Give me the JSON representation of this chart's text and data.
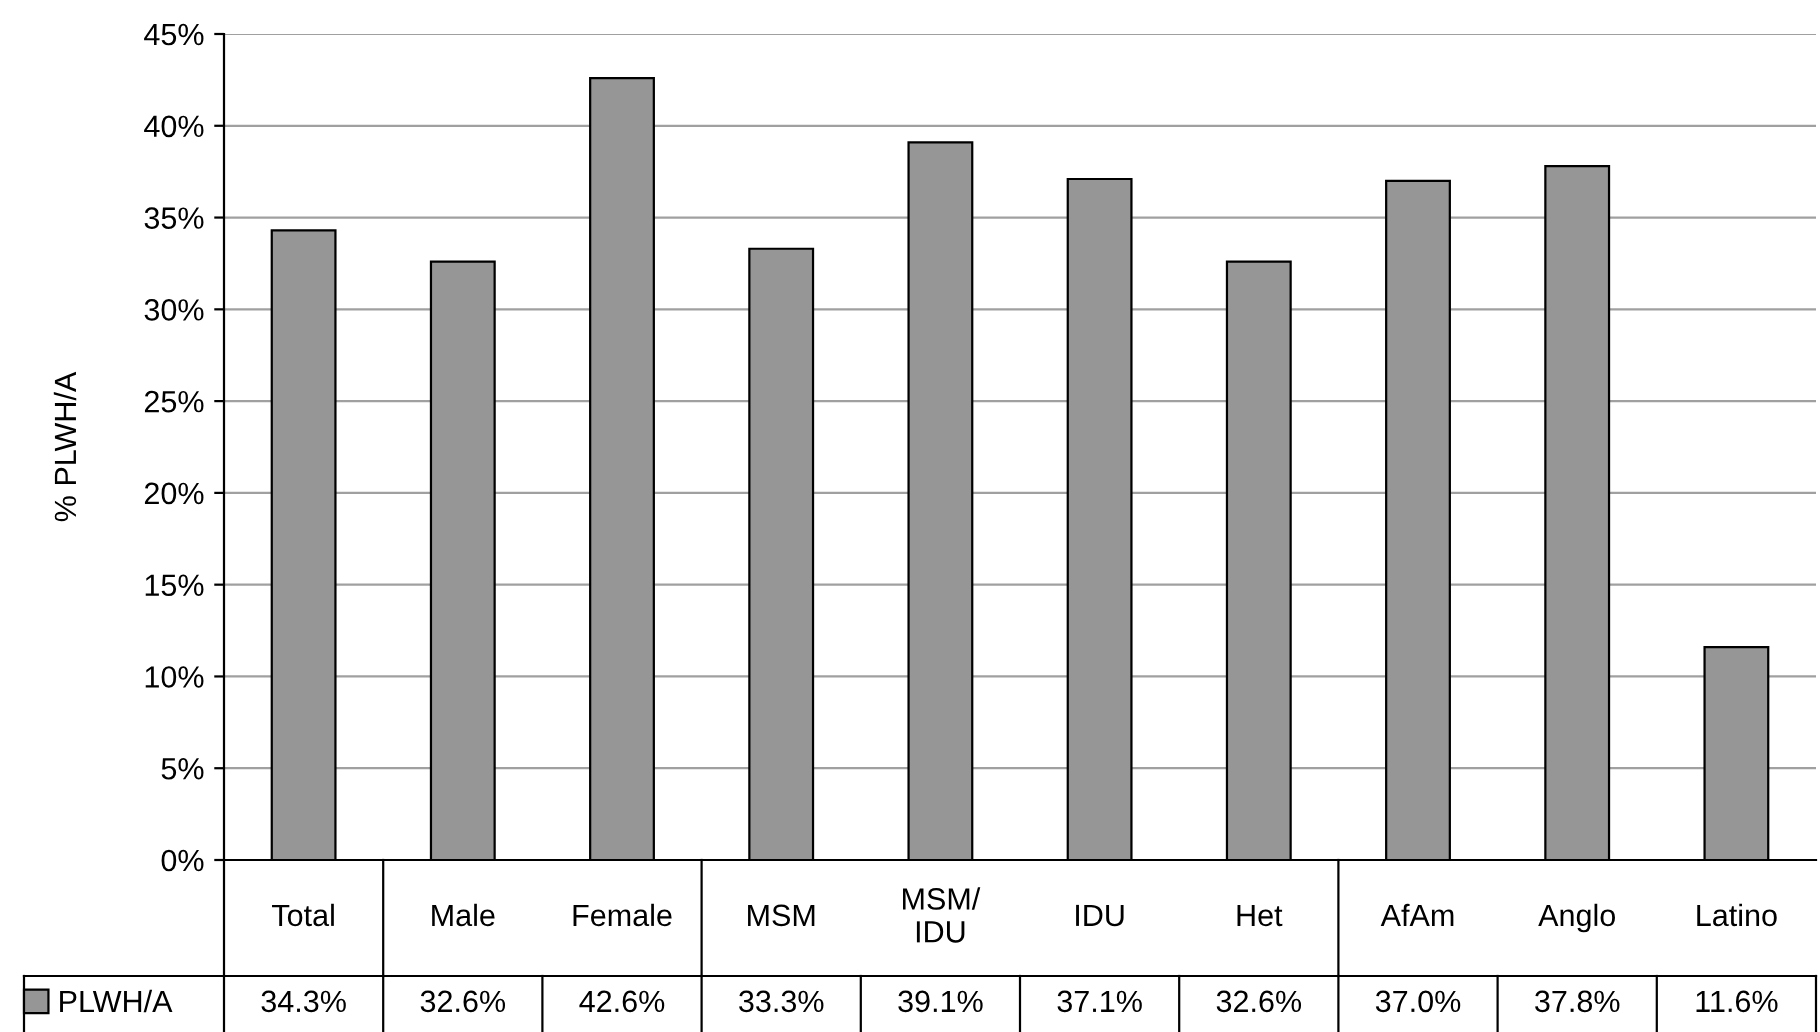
{
  "chart_data": {
    "type": "bar",
    "ylabel": "% PLWH/A",
    "categories": [
      "Total",
      "Male",
      "Female",
      "MSM",
      "MSM/\nIDU",
      "IDU",
      "Het",
      "AfAm",
      "Anglo",
      "Latino"
    ],
    "series": [
      {
        "name": "PLWH/A",
        "color": "#969696",
        "values": [
          34.3,
          32.6,
          42.6,
          33.3,
          39.1,
          37.1,
          32.6,
          37.0,
          37.8,
          11.6
        ],
        "value_labels": [
          "34.3%",
          "32.6%",
          "42.6%",
          "33.3%",
          "39.1%",
          "37.1%",
          "32.6%",
          "37.0%",
          "37.8%",
          "11.6%"
        ]
      }
    ],
    "ylim": [
      0,
      45
    ],
    "yticks": [
      {
        "value": 0,
        "label": "0%"
      },
      {
        "value": 5,
        "label": "5%"
      },
      {
        "value": 10,
        "label": "10%"
      },
      {
        "value": 15,
        "label": "15%"
      },
      {
        "value": 20,
        "label": "20%"
      },
      {
        "value": 25,
        "label": "25%"
      },
      {
        "value": 30,
        "label": "30%"
      },
      {
        "value": 35,
        "label": "35%"
      },
      {
        "value": 40,
        "label": "40%"
      },
      {
        "value": 45,
        "label": "45%"
      }
    ],
    "grid": "y",
    "legend": "bottom left"
  }
}
